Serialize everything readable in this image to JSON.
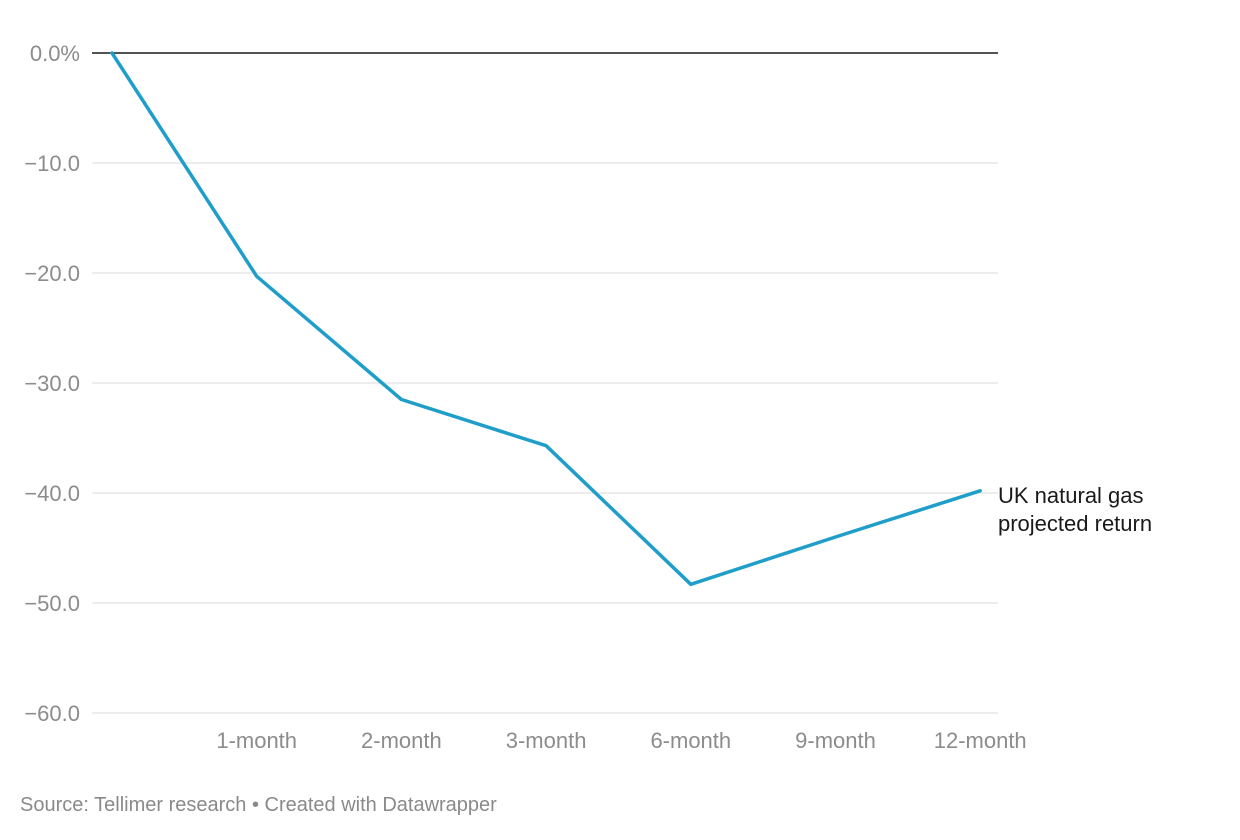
{
  "chart_data": {
    "type": "line",
    "categories": [
      "",
      "1-month",
      "2-month",
      "3-month",
      "6-month",
      "9-month",
      "12-month"
    ],
    "series": [
      {
        "name": "UK natural gas projected return",
        "label_lines": [
          "UK natural gas",
          "projected return"
        ],
        "values": [
          0.0,
          -20.3,
          -31.5,
          -35.7,
          -48.3,
          -44.0,
          -39.8
        ],
        "color": "#1f9ec9"
      }
    ],
    "y_ticks": [
      0,
      -10,
      -20,
      -30,
      -40,
      -50,
      -60
    ],
    "y_tick_labels": [
      "0.0%",
      "−10.0",
      "−20.0",
      "−30.0",
      "−40.0",
      "−50.0",
      "−60.0"
    ],
    "ylim": [
      -60,
      0
    ],
    "title": "",
    "xlabel": "",
    "ylabel": "",
    "grid": true,
    "legend": "inline-right"
  },
  "footer": {
    "source": "Source: Tellimer research • Created with Datawrapper"
  }
}
